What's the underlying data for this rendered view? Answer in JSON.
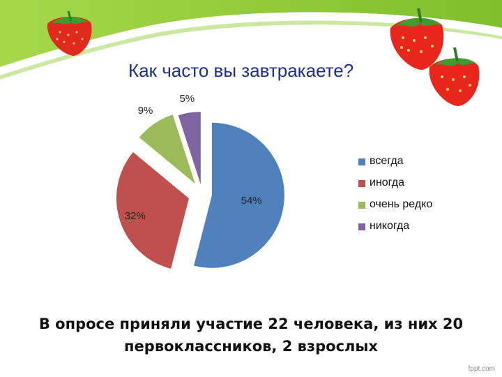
{
  "slide": {
    "footer_text": "В опросе приняли участие 22 человека, из них 20 первоклассников,  2 взрослых",
    "watermark": "fppt.com"
  },
  "chart_data": {
    "type": "pie",
    "exploded": true,
    "title": "Как часто вы завтракаете?",
    "categories": [
      "всегда",
      "иногда",
      "очень редко",
      "никогда"
    ],
    "values": [
      54,
      32,
      9,
      5
    ],
    "data_labels": [
      "54%",
      "32%",
      "9%",
      "5%"
    ],
    "colors": [
      "#4f81bd",
      "#c0504d",
      "#9bbb59",
      "#8064a2"
    ],
    "legend_placement": "right"
  },
  "decorations": {
    "strawberry_icon": "strawberry-icon",
    "accent_green": "#8cc63f"
  }
}
